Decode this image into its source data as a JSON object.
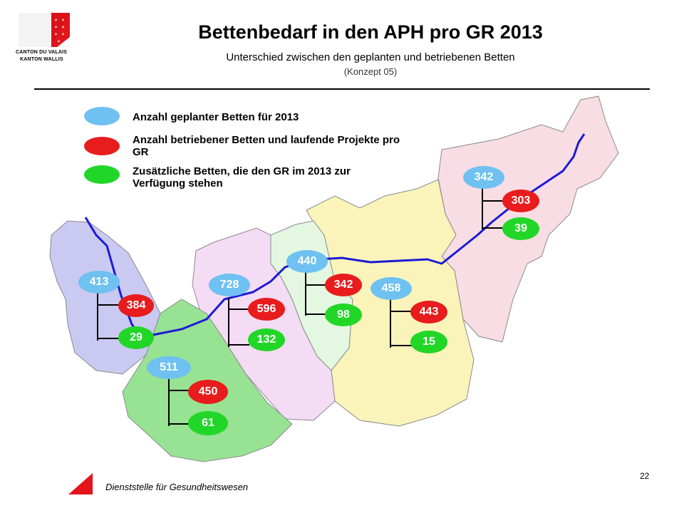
{
  "header": {
    "logo_line1": "CANTON DU VALAIS",
    "logo_line2": "KANTON WALLIS",
    "title": "Bettenbedarf in den APH pro GR 2013",
    "subtitle": "Unterschied zwischen den geplanten und betriebenen Betten",
    "concept": "(Konzept 05)"
  },
  "legend": {
    "planned": "Anzahl geplanter Betten für 2013",
    "operated": "Anzahl betriebener Betten und laufende Projekte pro GR",
    "additional": "Zusätzliche Betten, die den GR im 2013 zur Verfügung stehen"
  },
  "colors": {
    "planned": "#6ec1f1",
    "operated": "#e81c1c",
    "additional": "#22d628",
    "river": "#1a1ad6"
  },
  "regions": [
    {
      "name": "r1",
      "planned": "413",
      "operated": "384",
      "additional": "29"
    },
    {
      "name": "r2",
      "planned": "728",
      "operated": "596",
      "additional": "132"
    },
    {
      "name": "r3",
      "planned": "440",
      "operated": "342",
      "additional": "98"
    },
    {
      "name": "r4",
      "planned": "458",
      "operated": "443",
      "additional": "15"
    },
    {
      "name": "r5",
      "planned": "511",
      "operated": "450",
      "additional": "61"
    },
    {
      "name": "r6",
      "planned": "342",
      "operated": "303",
      "additional": "39"
    }
  ],
  "footer": {
    "department": "Dienststelle für Gesundheitswesen",
    "page": "22"
  }
}
